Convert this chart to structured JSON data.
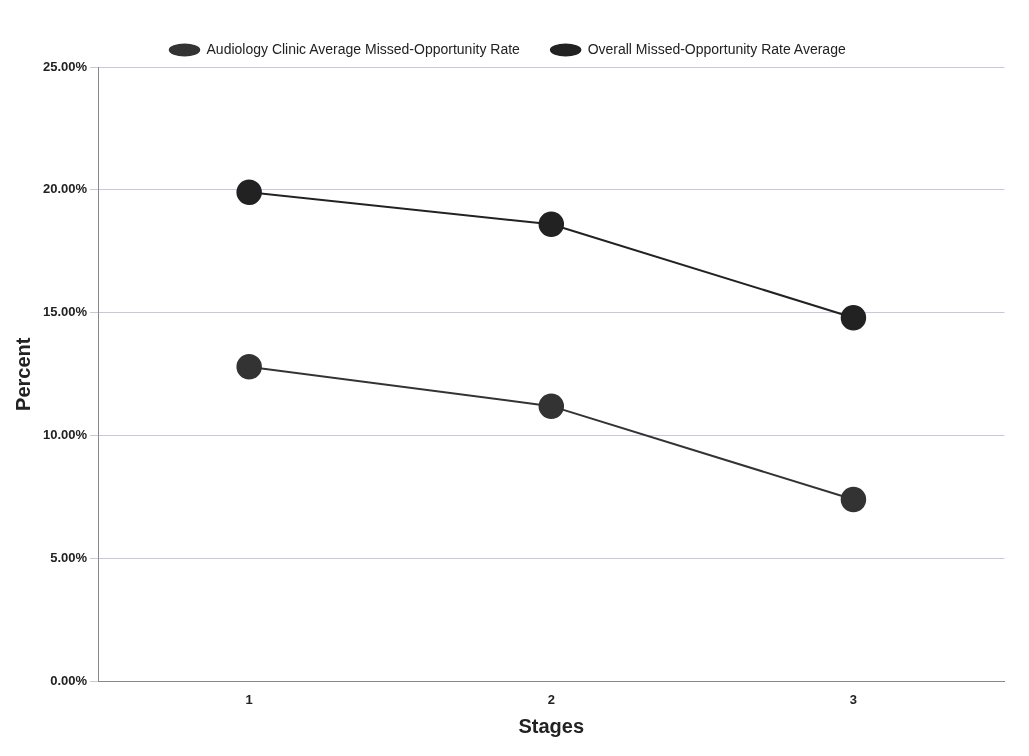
{
  "chart_data": {
    "type": "line",
    "xlabel": "Stages",
    "ylabel": "Percent",
    "categories": [
      "1",
      "2",
      "3"
    ],
    "series": [
      {
        "name": "Audiology Clinic Average Missed-Opportunity Rate",
        "color": "#333333",
        "values": [
          12.8,
          11.2,
          7.4
        ]
      },
      {
        "name": "Overall Missed-Opportunity Rate Average",
        "color": "#222222",
        "values": [
          19.9,
          18.6,
          14.8
        ]
      }
    ],
    "ylim": [
      0,
      25
    ],
    "yticks": [
      {
        "value": 0,
        "label": "0.00%"
      },
      {
        "value": 5,
        "label": "5.00%"
      },
      {
        "value": 10,
        "label": "10.00%"
      },
      {
        "value": 15,
        "label": "15.00%"
      },
      {
        "value": 20,
        "label": "20.00%"
      },
      {
        "value": 25,
        "label": "25.00%"
      }
    ],
    "grid": "y",
    "legend": "top",
    "marker": "circle",
    "line_style": "solid"
  }
}
